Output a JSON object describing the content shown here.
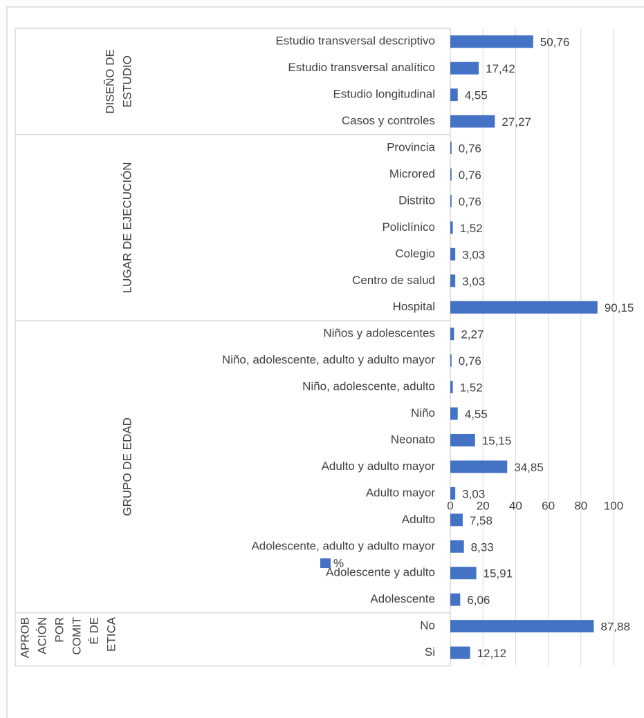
{
  "chart_data": {
    "type": "bar",
    "color": "#4472c4",
    "series_name": "%",
    "xlim": [
      0,
      100
    ],
    "xticks": [
      0,
      20,
      40,
      60,
      80,
      100
    ],
    "grid": true,
    "groups": [
      {
        "name": [
          "DISEÑO DE",
          "ESTUDIO"
        ],
        "categories": [
          "Estudio transversal descriptivo",
          "Estudio transversal analítico",
          "Estudio longitudinal",
          "Casos y controles"
        ],
        "values": [
          50.76,
          17.42,
          4.55,
          27.27
        ],
        "value_labels": [
          "50,76",
          "17,42",
          "4,55",
          "27,27"
        ]
      },
      {
        "name": [
          "LUGAR DE EJECUCIÓN"
        ],
        "categories": [
          "Provincia",
          "Microred",
          "Distrito",
          "Policlínico",
          "Colegio",
          "Centro de salud",
          "Hospital"
        ],
        "values": [
          0.76,
          0.76,
          0.76,
          1.52,
          3.03,
          3.03,
          90.15
        ],
        "value_labels": [
          "0,76",
          "0,76",
          "0,76",
          "1,52",
          "3,03",
          "3,03",
          "90,15"
        ]
      },
      {
        "name": [
          "GRUPO DE EDAD"
        ],
        "categories": [
          "Niños  y adolescentes",
          "Niño, adolescente, adulto y adulto mayor",
          "Niño, adolescente, adulto",
          "Niño",
          "Neonato",
          "Adulto y adulto mayor",
          "Adulto mayor",
          "Adulto",
          "Adolescente, adulto y adulto mayor",
          "Adolescente y adulto",
          "Adolescente"
        ],
        "values": [
          2.27,
          0.76,
          1.52,
          4.55,
          15.15,
          34.85,
          3.03,
          7.58,
          8.33,
          15.91,
          6.06
        ],
        "value_labels": [
          "2,27",
          "0,76",
          "1,52",
          "4,55",
          "15,15",
          "34,85",
          "3,03",
          "7,58",
          "8,33",
          "15,91",
          "6,06"
        ]
      },
      {
        "name": [
          "APROB",
          "ACIÓN",
          "POR",
          "COMIT",
          "É DE",
          "ETICA"
        ],
        "categories": [
          "No",
          "Si"
        ],
        "values": [
          87.88,
          12.12
        ],
        "value_labels": [
          "87,88",
          "12,12"
        ]
      }
    ]
  }
}
